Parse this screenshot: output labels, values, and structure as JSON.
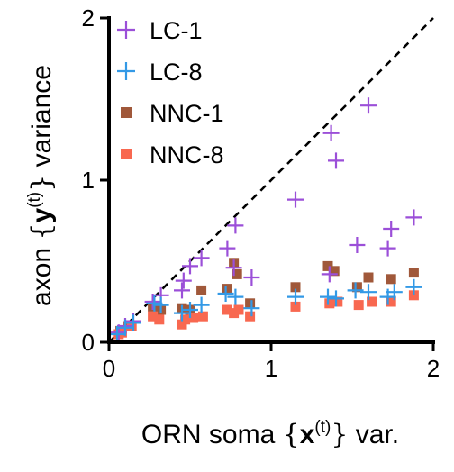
{
  "chart_data": {
    "type": "scatter",
    "title": "",
    "xlabel": "ORN soma {x(t)} var.",
    "xlabel_parts": {
      "prefix": "ORN soma ",
      "open": "{",
      "bold": "x",
      "sup": "(t)",
      "close": "}",
      "suffix": " var."
    },
    "ylabel": "axon {y(t)} variance",
    "ylabel_parts": {
      "prefix": "axon ",
      "open": "{",
      "bold": "y",
      "sup": "(t)",
      "close": "}",
      "suffix": " variance"
    },
    "xlim": [
      0,
      2
    ],
    "ylim": [
      0,
      2
    ],
    "x_ticks": [
      {
        "value": 0,
        "label": "0"
      },
      {
        "value": 1,
        "label": "1"
      },
      {
        "value": 2,
        "label": "2"
      }
    ],
    "y_ticks": [
      {
        "value": 0,
        "label": "0"
      },
      {
        "value": 1,
        "label": "1"
      },
      {
        "value": 2,
        "label": "2"
      }
    ],
    "grid": false,
    "identity_line": {
      "style": "dashed",
      "from": [
        0,
        0
      ],
      "to": [
        2,
        2
      ]
    },
    "legend_position": "top-left",
    "series": [
      {
        "name": "LC-1",
        "marker": "plus",
        "color": "#9b4fd8",
        "points": [
          [
            0.06,
            0.06
          ],
          [
            0.1,
            0.1
          ],
          [
            0.15,
            0.13
          ],
          [
            0.27,
            0.25
          ],
          [
            0.32,
            0.29
          ],
          [
            0.45,
            0.32
          ],
          [
            0.46,
            0.38
          ],
          [
            0.5,
            0.47
          ],
          [
            0.57,
            0.52
          ],
          [
            0.73,
            0.58
          ],
          [
            0.78,
            0.72
          ],
          [
            0.77,
            0.46
          ],
          [
            0.88,
            0.4
          ],
          [
            1.15,
            0.88
          ],
          [
            1.37,
            1.29
          ],
          [
            1.4,
            1.12
          ],
          [
            1.6,
            1.46
          ],
          [
            1.53,
            0.6
          ],
          [
            1.72,
            0.58
          ],
          [
            1.74,
            0.7
          ],
          [
            1.88,
            0.77
          ],
          [
            1.36,
            0.42
          ]
        ]
      },
      {
        "name": "LC-8",
        "marker": "plus",
        "color": "#3399e6",
        "points": [
          [
            0.05,
            0.05
          ],
          [
            0.1,
            0.09
          ],
          [
            0.15,
            0.12
          ],
          [
            0.28,
            0.24
          ],
          [
            0.32,
            0.23
          ],
          [
            0.45,
            0.18
          ],
          [
            0.5,
            0.2
          ],
          [
            0.57,
            0.23
          ],
          [
            0.72,
            0.3
          ],
          [
            0.78,
            0.28
          ],
          [
            0.88,
            0.21
          ],
          [
            1.15,
            0.28
          ],
          [
            1.35,
            0.28
          ],
          [
            1.4,
            0.27
          ],
          [
            1.52,
            0.32
          ],
          [
            1.6,
            0.31
          ],
          [
            1.72,
            0.28
          ],
          [
            1.76,
            0.31
          ],
          [
            1.88,
            0.34
          ]
        ]
      },
      {
        "name": "NNC-1",
        "marker": "square",
        "color": "#a0583a",
        "points": [
          [
            0.07,
            0.07
          ],
          [
            0.12,
            0.1
          ],
          [
            0.27,
            0.22
          ],
          [
            0.32,
            0.2
          ],
          [
            0.45,
            0.21
          ],
          [
            0.5,
            0.2
          ],
          [
            0.57,
            0.32
          ],
          [
            0.73,
            0.33
          ],
          [
            0.77,
            0.49
          ],
          [
            0.79,
            0.42
          ],
          [
            0.87,
            0.24
          ],
          [
            1.15,
            0.34
          ],
          [
            1.35,
            0.47
          ],
          [
            1.39,
            0.44
          ],
          [
            1.53,
            0.34
          ],
          [
            1.6,
            0.4
          ],
          [
            1.74,
            0.39
          ],
          [
            1.88,
            0.43
          ]
        ]
      },
      {
        "name": "NNC-8",
        "marker": "square",
        "color": "#f86850",
        "points": [
          [
            0.06,
            0.05
          ],
          [
            0.08,
            0.06
          ],
          [
            0.14,
            0.1
          ],
          [
            0.27,
            0.16
          ],
          [
            0.31,
            0.14
          ],
          [
            0.45,
            0.11
          ],
          [
            0.47,
            0.14
          ],
          [
            0.52,
            0.15
          ],
          [
            0.58,
            0.16
          ],
          [
            0.73,
            0.2
          ],
          [
            0.77,
            0.18
          ],
          [
            0.8,
            0.2
          ],
          [
            0.87,
            0.16
          ],
          [
            1.15,
            0.22
          ],
          [
            1.36,
            0.24
          ],
          [
            1.41,
            0.25
          ],
          [
            1.54,
            0.23
          ],
          [
            1.62,
            0.25
          ],
          [
            1.74,
            0.25
          ],
          [
            1.88,
            0.29
          ]
        ]
      }
    ]
  }
}
